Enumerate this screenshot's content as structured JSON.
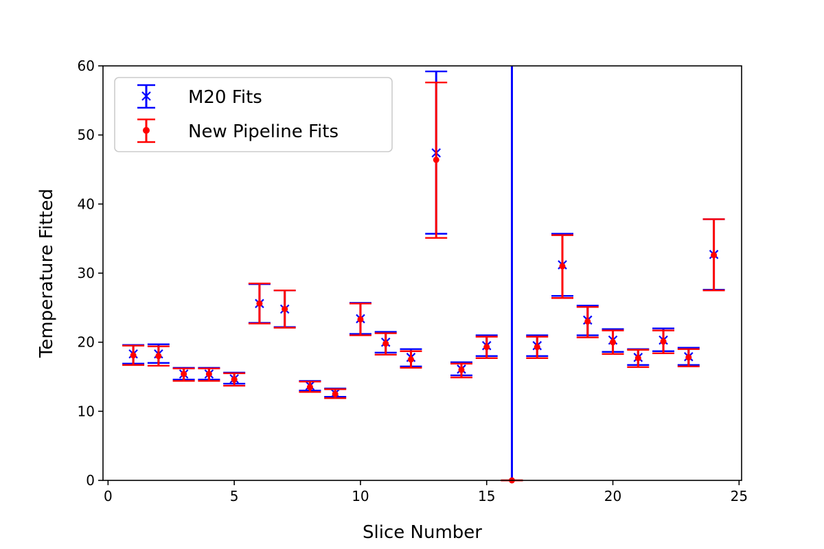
{
  "chart_data": {
    "type": "scatter",
    "title": "",
    "xlabel": "Slice Number",
    "ylabel": "Temperature Fitted",
    "xlim": [
      -0.2,
      25.1
    ],
    "ylim": [
      0,
      60
    ],
    "xticks": [
      0,
      5,
      10,
      15,
      20,
      25
    ],
    "yticks": [
      0,
      10,
      20,
      30,
      40,
      50,
      60
    ],
    "grid": false,
    "legend_position": "upper-left",
    "vertical_line": {
      "x": 16,
      "color": "#0000ff"
    },
    "series": [
      {
        "name": "M20 Fits",
        "marker": "x",
        "color": "#0000ff",
        "x": [
          1,
          2,
          3,
          4,
          5,
          6,
          7,
          8,
          9,
          10,
          11,
          12,
          13,
          14,
          15,
          17,
          18,
          19,
          20,
          21,
          22,
          23,
          24
        ],
        "y": [
          18.3,
          18.3,
          15.4,
          15.4,
          14.7,
          25.6,
          24.8,
          13.7,
          12.6,
          23.4,
          20.0,
          17.8,
          47.4,
          16.1,
          19.5,
          19.5,
          31.2,
          23.2,
          20.3,
          17.8,
          20.3,
          17.9,
          32.7
        ],
        "yerr_low": [
          16.9,
          17.0,
          14.6,
          14.6,
          14.0,
          22.8,
          22.2,
          13.0,
          12.1,
          21.2,
          18.5,
          16.5,
          35.7,
          15.2,
          18.0,
          18.0,
          26.7,
          21.0,
          18.6,
          16.7,
          18.7,
          16.7,
          27.6
        ],
        "yerr_high": [
          19.6,
          19.7,
          16.3,
          16.3,
          15.6,
          28.4,
          27.5,
          14.4,
          13.3,
          25.7,
          21.5,
          19.0,
          59.2,
          17.1,
          21.0,
          21.0,
          35.7,
          25.3,
          21.9,
          19.0,
          22.0,
          19.2,
          37.8
        ]
      },
      {
        "name": "New Pipeline Fits",
        "marker": "o",
        "color": "#ff0000",
        "x": [
          1,
          2,
          3,
          4,
          5,
          6,
          7,
          8,
          9,
          10,
          11,
          12,
          13,
          14,
          15,
          16,
          17,
          18,
          19,
          20,
          21,
          22,
          23,
          24
        ],
        "y": [
          18.1,
          18.0,
          15.4,
          15.4,
          14.6,
          25.6,
          24.8,
          13.5,
          12.5,
          23.3,
          19.8,
          17.5,
          46.4,
          16.0,
          19.3,
          0,
          19.3,
          31.0,
          23.0,
          20.0,
          17.7,
          20.1,
          17.8,
          32.6
        ],
        "yerr_low": [
          16.7,
          16.6,
          14.4,
          14.4,
          13.7,
          22.7,
          22.1,
          12.8,
          11.9,
          21.0,
          18.2,
          16.3,
          35.1,
          14.9,
          17.7,
          0,
          17.7,
          26.4,
          20.7,
          18.3,
          16.4,
          18.4,
          16.5,
          27.5
        ],
        "yerr_high": [
          19.5,
          19.4,
          16.2,
          16.2,
          15.5,
          28.5,
          27.5,
          14.3,
          13.2,
          25.6,
          21.3,
          18.7,
          57.6,
          16.9,
          20.8,
          0,
          20.8,
          35.5,
          25.1,
          21.7,
          18.9,
          21.7,
          19.0,
          37.8
        ]
      }
    ]
  }
}
